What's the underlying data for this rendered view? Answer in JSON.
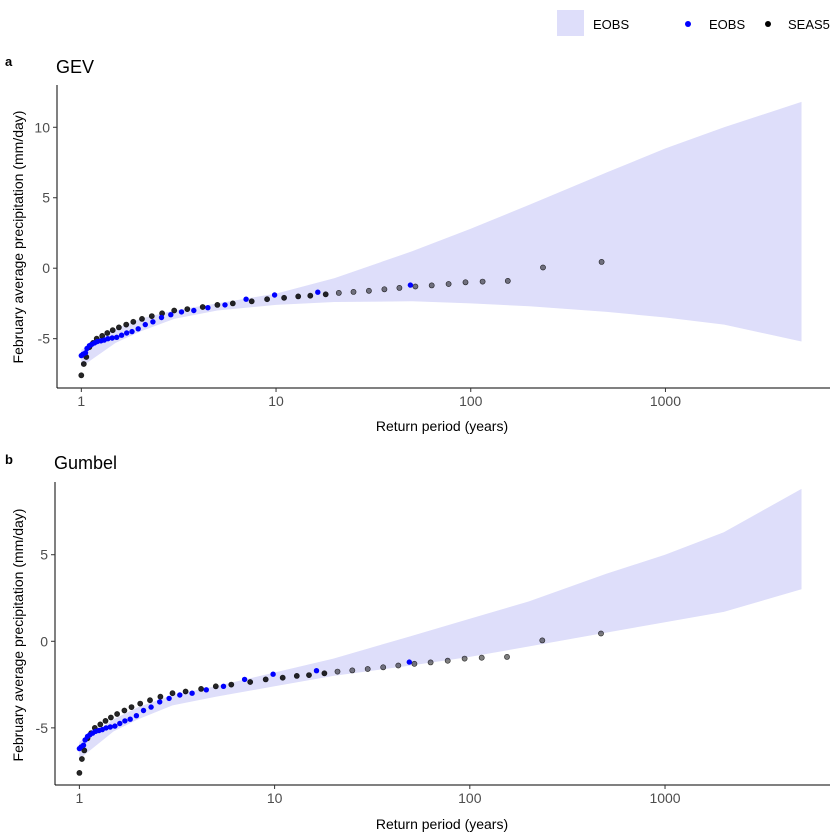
{
  "legend": {
    "entries": [
      {
        "label": "EOBS",
        "kind": "ribbon",
        "color": "#dedefa"
      },
      {
        "label": "EOBS",
        "kind": "point",
        "color": "#0000ff"
      },
      {
        "label": "SEAS5",
        "kind": "point",
        "color": "#000000"
      }
    ]
  },
  "colors": {
    "ribbon": "#dedefa",
    "eobs_point": "#0000ff",
    "seas5_point": "#000000",
    "axis": "#000000",
    "tick_label": "#4d4d4d"
  },
  "chart_data": [
    {
      "type": "scatter",
      "tag": "a",
      "title": "GEV",
      "xlabel": "Return period (years)",
      "ylabel": "February average precipitation (mm/day)",
      "x_scale": "log",
      "xlim": [
        0.75,
        7000
      ],
      "ylim": [
        -8.5,
        13
      ],
      "x_ticks": [
        1,
        10,
        100,
        1000
      ],
      "x_tick_labels": [
        "1",
        "10",
        "100",
        "1000"
      ],
      "y_ticks": [
        -5,
        0,
        5,
        10
      ],
      "y_tick_labels": [
        "-5",
        "0",
        "5",
        "10"
      ],
      "grid": false,
      "ribbon": {
        "name": "EOBS",
        "x": [
          1,
          1.5,
          2,
          3,
          5,
          10,
          20,
          50,
          100,
          200,
          500,
          1000,
          2000,
          5000
        ],
        "lower": [
          -7.0,
          -5.3,
          -4.5,
          -3.6,
          -3.0,
          -2.6,
          -2.4,
          -2.35,
          -2.5,
          -2.7,
          -3.1,
          -3.5,
          -4.0,
          -5.2
        ],
        "upper": [
          -5.8,
          -4.3,
          -3.6,
          -3.0,
          -2.5,
          -1.8,
          -0.7,
          1.2,
          2.8,
          4.5,
          6.8,
          8.5,
          10.0,
          11.8
        ]
      },
      "series": [
        {
          "name": "EOBS",
          "color": "#0000ff",
          "x": [
            1.0,
            1.02,
            1.05,
            1.07,
            1.1,
            1.13,
            1.17,
            1.21,
            1.26,
            1.31,
            1.37,
            1.44,
            1.52,
            1.61,
            1.71,
            1.82,
            1.96,
            2.13,
            2.33,
            2.58,
            2.88,
            3.27,
            3.78,
            4.47,
            5.47,
            7.02,
            9.83,
            16.39,
            49.0
          ],
          "y": [
            -6.2,
            -6.1,
            -6.0,
            -5.7,
            -5.5,
            -5.4,
            -5.3,
            -5.2,
            -5.15,
            -5.1,
            -5.0,
            -4.95,
            -4.9,
            -4.75,
            -4.6,
            -4.5,
            -4.3,
            -4.0,
            -3.8,
            -3.5,
            -3.3,
            -3.1,
            -3.0,
            -2.8,
            -2.6,
            -2.2,
            -1.9,
            -1.7,
            -1.2
          ]
        },
        {
          "name": "SEAS5",
          "color": "#000000",
          "x": [
            1.0,
            1.03,
            1.06,
            1.1,
            1.15,
            1.2,
            1.28,
            1.36,
            1.45,
            1.56,
            1.7,
            1.85,
            2.05,
            2.3,
            2.6,
            3.0,
            3.5,
            4.2,
            5.0,
            6.0,
            7.5,
            9.0,
            11.0,
            13.0,
            15.0,
            18.0,
            21.0,
            25.0,
            30.0,
            36.0,
            43.0,
            52.0,
            63.0,
            77.0,
            94.0,
            115.0,
            155.0,
            235.0,
            470.0
          ],
          "y": [
            -7.6,
            -6.8,
            -6.3,
            -5.6,
            -5.3,
            -5.0,
            -4.8,
            -4.6,
            -4.4,
            -4.2,
            -4.0,
            -3.8,
            -3.6,
            -3.4,
            -3.2,
            -3.0,
            -2.9,
            -2.75,
            -2.6,
            -2.5,
            -2.35,
            -2.2,
            -2.1,
            -2.0,
            -1.95,
            -1.85,
            -1.75,
            -1.68,
            -1.6,
            -1.5,
            -1.4,
            -1.3,
            -1.22,
            -1.12,
            -1.0,
            -0.95,
            -0.9,
            0.05,
            0.45
          ]
        }
      ]
    },
    {
      "type": "scatter",
      "tag": "b",
      "title": "Gumbel",
      "xlabel": "Return period (years)",
      "ylabel": "February average precipitation (mm/day)",
      "x_scale": "log",
      "xlim": [
        0.75,
        7000
      ],
      "ylim": [
        -8.3,
        9.2
      ],
      "x_ticks": [
        1,
        10,
        100,
        1000
      ],
      "x_tick_labels": [
        "1",
        "10",
        "100",
        "1000"
      ],
      "y_ticks": [
        -5,
        0,
        5
      ],
      "y_tick_labels": [
        "-5",
        "0",
        "5"
      ],
      "grid": false,
      "ribbon": {
        "name": "EOBS",
        "x": [
          1,
          1.5,
          2,
          3,
          5,
          10,
          20,
          50,
          100,
          200,
          500,
          1000,
          2000,
          5000
        ],
        "lower": [
          -6.8,
          -5.2,
          -4.5,
          -3.7,
          -3.2,
          -2.6,
          -2.0,
          -1.4,
          -0.9,
          -0.3,
          0.5,
          1.1,
          1.7,
          3.0
        ],
        "upper": [
          -5.8,
          -4.5,
          -3.8,
          -3.1,
          -2.6,
          -1.8,
          -1.0,
          0.3,
          1.3,
          2.3,
          3.9,
          5.0,
          6.3,
          8.8
        ]
      },
      "series": [
        {
          "name": "EOBS",
          "color": "#0000ff",
          "x": [
            1.0,
            1.02,
            1.05,
            1.07,
            1.1,
            1.13,
            1.17,
            1.21,
            1.26,
            1.31,
            1.37,
            1.44,
            1.52,
            1.61,
            1.71,
            1.82,
            1.96,
            2.13,
            2.33,
            2.58,
            2.88,
            3.27,
            3.78,
            4.47,
            5.47,
            7.02,
            9.83,
            16.39,
            49.0
          ],
          "y": [
            -6.2,
            -6.1,
            -6.0,
            -5.7,
            -5.5,
            -5.4,
            -5.3,
            -5.2,
            -5.15,
            -5.1,
            -5.0,
            -4.95,
            -4.9,
            -4.75,
            -4.6,
            -4.5,
            -4.3,
            -4.0,
            -3.8,
            -3.5,
            -3.3,
            -3.1,
            -3.0,
            -2.8,
            -2.6,
            -2.2,
            -1.9,
            -1.7,
            -1.2
          ]
        },
        {
          "name": "SEAS5",
          "color": "#000000",
          "x": [
            1.0,
            1.03,
            1.06,
            1.1,
            1.15,
            1.2,
            1.28,
            1.36,
            1.45,
            1.56,
            1.7,
            1.85,
            2.05,
            2.3,
            2.6,
            3.0,
            3.5,
            4.2,
            5.0,
            6.0,
            7.5,
            9.0,
            11.0,
            13.0,
            15.0,
            18.0,
            21.0,
            25.0,
            30.0,
            36.0,
            43.0,
            52.0,
            63.0,
            77.0,
            94.0,
            115.0,
            155.0,
            235.0,
            470.0
          ],
          "y": [
            -7.6,
            -6.8,
            -6.3,
            -5.6,
            -5.3,
            -5.0,
            -4.8,
            -4.6,
            -4.4,
            -4.2,
            -4.0,
            -3.8,
            -3.6,
            -3.4,
            -3.2,
            -3.0,
            -2.9,
            -2.75,
            -2.6,
            -2.5,
            -2.35,
            -2.2,
            -2.1,
            -2.0,
            -1.95,
            -1.85,
            -1.75,
            -1.68,
            -1.6,
            -1.5,
            -1.4,
            -1.3,
            -1.22,
            -1.12,
            -1.0,
            -0.95,
            -0.9,
            0.05,
            0.45
          ]
        }
      ]
    }
  ]
}
